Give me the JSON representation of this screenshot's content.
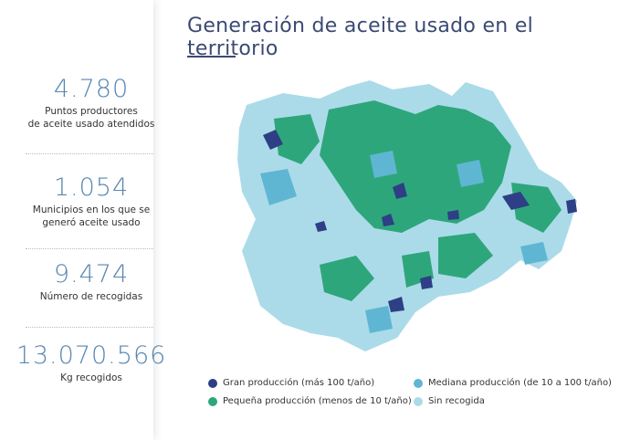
{
  "header": {
    "title": "Generación de aceite usado en el territorio"
  },
  "stats": [
    {
      "value": "4.780",
      "label": [
        "Puntos productores",
        "de aceite usado atendidos"
      ]
    },
    {
      "value": "1.054",
      "label": [
        "Municipios en los que se",
        "generó aceite usado"
      ]
    },
    {
      "value": "9.474",
      "label": [
        "Número de recogidas"
      ]
    },
    {
      "value": "13.070.566",
      "label": [
        "Kg recogidos"
      ]
    }
  ],
  "legend": [
    {
      "label": "Gran producción (más 100 t/año)",
      "color": "#2e3f86"
    },
    {
      "label": "Mediana producción (de 10 a 100 t/año)",
      "color": "#5fb6d3"
    },
    {
      "label": "Pequeña producción (menos de 10 t/año)",
      "color": "#2ea67b"
    },
    {
      "label": "Sin recogida",
      "color": "#abdbe9"
    }
  ]
}
